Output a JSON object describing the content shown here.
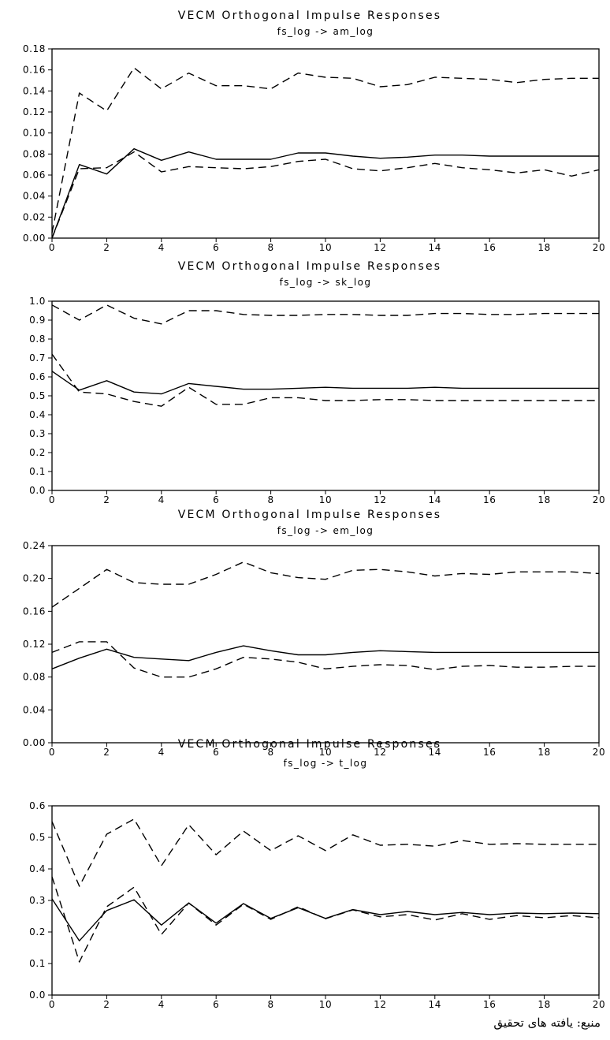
{
  "chart_data": [
    {
      "type": "line",
      "title": "VECM Orthogonal Impulse Responses",
      "subtitle": "fs_log -> am_log",
      "x": [
        0,
        1,
        2,
        3,
        4,
        5,
        6,
        7,
        8,
        9,
        10,
        11,
        12,
        13,
        14,
        15,
        16,
        17,
        18,
        19,
        20
      ],
      "xlim": [
        0,
        20
      ],
      "xticks": [
        "0",
        "2",
        "4",
        "6",
        "8",
        "10",
        "12",
        "14",
        "16",
        "18",
        "20"
      ],
      "ylim": [
        0,
        0.18
      ],
      "yticks": [
        "0.00",
        "0.02",
        "0.04",
        "0.06",
        "0.08",
        "0.10",
        "0.12",
        "0.14",
        "0.16",
        "0.18"
      ],
      "grid": false,
      "series": [
        {
          "style": "solid",
          "values": [
            0.0,
            0.07,
            0.061,
            0.085,
            0.074,
            0.082,
            0.075,
            0.075,
            0.075,
            0.081,
            0.081,
            0.078,
            0.076,
            0.077,
            0.079,
            0.079,
            0.078,
            0.078,
            0.078,
            0.078,
            0.078
          ]
        },
        {
          "style": "dashed",
          "values": [
            0.0,
            0.066,
            0.067,
            0.082,
            0.063,
            0.068,
            0.067,
            0.066,
            0.068,
            0.073,
            0.075,
            0.066,
            0.064,
            0.067,
            0.071,
            0.067,
            0.065,
            0.062,
            0.065,
            0.059,
            0.065
          ]
        },
        {
          "style": "dashed",
          "values": [
            0.005,
            0.138,
            0.121,
            0.162,
            0.142,
            0.157,
            0.145,
            0.145,
            0.142,
            0.157,
            0.153,
            0.152,
            0.144,
            0.146,
            0.153,
            0.152,
            0.151,
            0.148,
            0.151,
            0.152,
            0.152
          ]
        }
      ]
    },
    {
      "type": "line",
      "title": "VECM Orthogonal Impulse Responses",
      "subtitle": "fs_log -> sk_log",
      "x": [
        0,
        1,
        2,
        3,
        4,
        5,
        6,
        7,
        8,
        9,
        10,
        11,
        12,
        13,
        14,
        15,
        16,
        17,
        18,
        19,
        20
      ],
      "xlim": [
        0,
        20
      ],
      "xticks": [
        "0",
        "2",
        "4",
        "6",
        "8",
        "10",
        "12",
        "14",
        "16",
        "18",
        "20"
      ],
      "ylim": [
        0,
        1.0
      ],
      "yticks": [
        "0.0",
        "0.1",
        "0.2",
        "0.3",
        "0.4",
        "0.5",
        "0.6",
        "0.7",
        "0.8",
        "0.9",
        "1.0"
      ],
      "grid": false,
      "series": [
        {
          "style": "solid",
          "values": [
            0.63,
            0.53,
            0.58,
            0.52,
            0.51,
            0.565,
            0.55,
            0.535,
            0.535,
            0.54,
            0.545,
            0.54,
            0.54,
            0.54,
            0.545,
            0.54,
            0.54,
            0.54,
            0.54,
            0.54,
            0.54
          ]
        },
        {
          "style": "dashed",
          "values": [
            0.72,
            0.52,
            0.51,
            0.47,
            0.445,
            0.545,
            0.455,
            0.455,
            0.49,
            0.49,
            0.475,
            0.475,
            0.48,
            0.48,
            0.475,
            0.475,
            0.475,
            0.475,
            0.475,
            0.475,
            0.475
          ]
        },
        {
          "style": "dashed",
          "values": [
            0.98,
            0.9,
            0.98,
            0.91,
            0.88,
            0.95,
            0.95,
            0.93,
            0.925,
            0.925,
            0.93,
            0.93,
            0.925,
            0.925,
            0.935,
            0.935,
            0.93,
            0.93,
            0.935,
            0.935,
            0.935
          ]
        }
      ]
    },
    {
      "type": "line",
      "title": "VECM Orthogonal Impulse Responses",
      "subtitle": "fs_log -> em_log",
      "x": [
        0,
        1,
        2,
        3,
        4,
        5,
        6,
        7,
        8,
        9,
        10,
        11,
        12,
        13,
        14,
        15,
        16,
        17,
        18,
        19,
        20
      ],
      "xlim": [
        0,
        20
      ],
      "xticks": [
        "0",
        "2",
        "4",
        "6",
        "8",
        "10",
        "12",
        "14",
        "16",
        "18",
        "20"
      ],
      "ylim": [
        0,
        0.24
      ],
      "yticks": [
        "0.00",
        "0.04",
        "0.08",
        "0.12",
        "0.16",
        "0.20",
        "0.24"
      ],
      "grid": false,
      "series": [
        {
          "style": "solid",
          "values": [
            0.09,
            0.103,
            0.114,
            0.104,
            0.102,
            0.1,
            0.11,
            0.118,
            0.112,
            0.107,
            0.107,
            0.11,
            0.112,
            0.111,
            0.11,
            0.11,
            0.11,
            0.11,
            0.11,
            0.11,
            0.11
          ]
        },
        {
          "style": "dashed",
          "values": [
            0.11,
            0.123,
            0.123,
            0.091,
            0.08,
            0.08,
            0.09,
            0.104,
            0.102,
            0.098,
            0.09,
            0.093,
            0.095,
            0.094,
            0.089,
            0.093,
            0.094,
            0.092,
            0.092,
            0.093,
            0.093
          ]
        },
        {
          "style": "dashed",
          "values": [
            0.165,
            0.188,
            0.211,
            0.195,
            0.193,
            0.193,
            0.205,
            0.22,
            0.207,
            0.201,
            0.199,
            0.21,
            0.211,
            0.208,
            0.203,
            0.206,
            0.205,
            0.208,
            0.208,
            0.208,
            0.206
          ]
        }
      ]
    },
    {
      "type": "line",
      "title": "VECM Orthogonal Impulse Responses",
      "subtitle": "fs_log -> t_log",
      "x": [
        0,
        1,
        2,
        3,
        4,
        5,
        6,
        7,
        8,
        9,
        10,
        11,
        12,
        13,
        14,
        15,
        16,
        17,
        18,
        19,
        20
      ],
      "xlim": [
        0,
        20
      ],
      "xticks": [
        "0",
        "2",
        "4",
        "6",
        "8",
        "10",
        "12",
        "14",
        "16",
        "18",
        "20"
      ],
      "ylim": [
        0,
        0.6
      ],
      "yticks": [
        "0.0",
        "0.1",
        "0.2",
        "0.3",
        "0.4",
        "0.5",
        "0.6"
      ],
      "grid": false,
      "series": [
        {
          "style": "solid",
          "values": [
            0.305,
            0.172,
            0.268,
            0.302,
            0.222,
            0.292,
            0.228,
            0.29,
            0.243,
            0.277,
            0.243,
            0.271,
            0.255,
            0.265,
            0.255,
            0.262,
            0.255,
            0.26,
            0.258,
            0.26,
            0.258
          ]
        },
        {
          "style": "dashed",
          "values": [
            0.375,
            0.105,
            0.28,
            0.342,
            0.192,
            0.292,
            0.222,
            0.288,
            0.24,
            0.28,
            0.242,
            0.27,
            0.248,
            0.255,
            0.238,
            0.258,
            0.24,
            0.252,
            0.245,
            0.252,
            0.245
          ]
        },
        {
          "style": "dashed",
          "values": [
            0.55,
            0.345,
            0.51,
            0.558,
            0.41,
            0.54,
            0.445,
            0.52,
            0.458,
            0.505,
            0.458,
            0.508,
            0.475,
            0.478,
            0.472,
            0.49,
            0.478,
            0.48,
            0.478,
            0.478,
            0.478
          ]
        }
      ]
    }
  ],
  "source_note": "منبع: یافته های تحقیق"
}
